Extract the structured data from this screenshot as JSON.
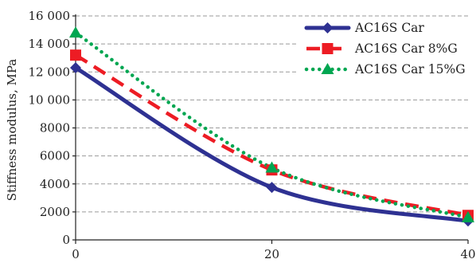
{
  "chart_data": {
    "type": "line",
    "title": "",
    "xlabel": "",
    "ylabel": "Stiffness modulus, MPa",
    "x": [
      0,
      20,
      40
    ],
    "xlim": [
      0,
      40
    ],
    "ylim": [
      0,
      16000
    ],
    "xticks": [
      0,
      20,
      40
    ],
    "yticks": [
      0,
      2000,
      4000,
      6000,
      8000,
      10000,
      12000,
      14000,
      16000
    ],
    "ytick_labels": [
      "0",
      "2000",
      "4000",
      "6000",
      "8000",
      "10 000",
      "12 000",
      "14 000",
      "16 000"
    ],
    "grid": "horizontal dashed",
    "legend_position": "top-right",
    "series": [
      {
        "name": "AC16S Car",
        "values": [
          12300,
          3750,
          1350
        ],
        "color": "#2e3192",
        "line": "solid",
        "marker": "diamond"
      },
      {
        "name": "AC16S Car 8%G",
        "values": [
          13200,
          5000,
          1750
        ],
        "color": "#ed1c24",
        "line": "dashed",
        "marker": "square"
      },
      {
        "name": "AC16S Car 15%G",
        "values": [
          14800,
          5150,
          1600
        ],
        "color": "#00a651",
        "line": "dotted",
        "marker": "triangle"
      }
    ]
  }
}
